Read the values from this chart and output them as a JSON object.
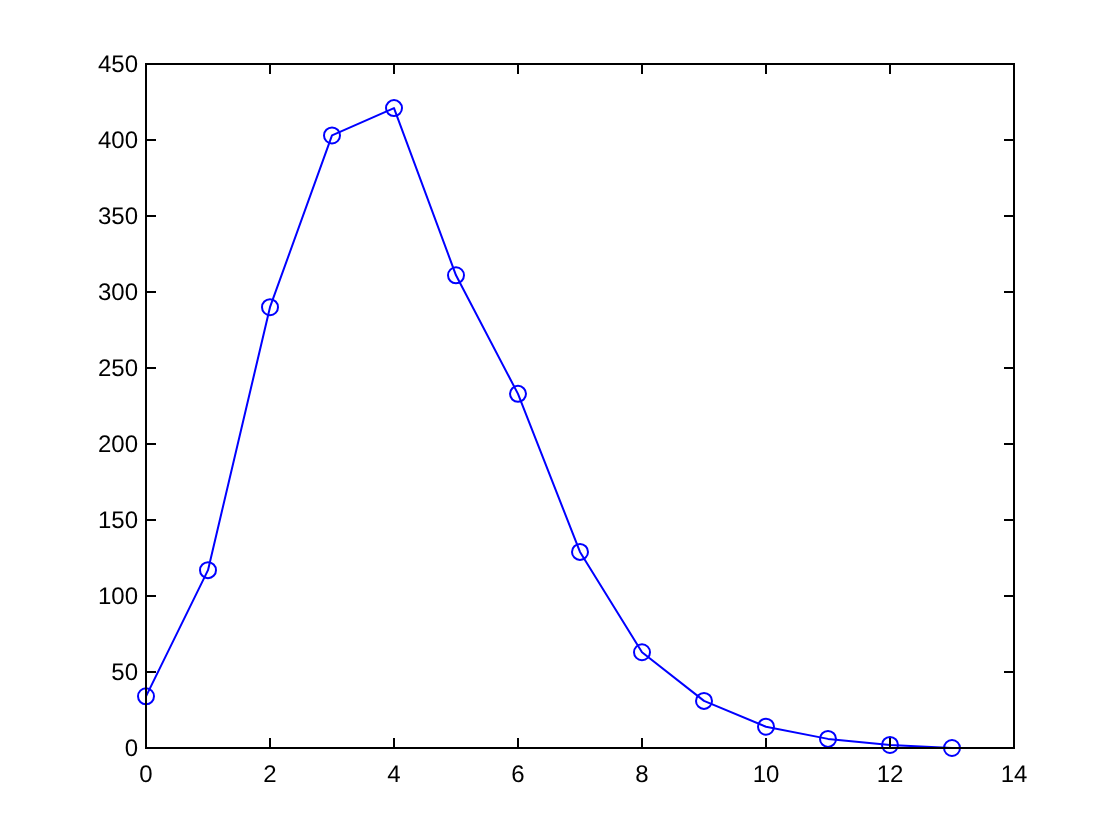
{
  "chart_data": {
    "type": "line",
    "x": [
      0,
      1,
      2,
      3,
      4,
      5,
      6,
      7,
      8,
      9,
      10,
      11,
      12,
      13
    ],
    "series": [
      {
        "color": "#0000ff",
        "values": [
          34,
          117,
          290,
          403,
          421,
          311,
          233,
          129,
          63,
          31,
          14,
          6,
          2,
          0
        ]
      }
    ],
    "xlim": [
      0,
      14
    ],
    "xticks": [
      0,
      2,
      4,
      6,
      8,
      10,
      12,
      14
    ],
    "ylim": [
      0,
      450
    ],
    "yticks": [
      0,
      50,
      100,
      150,
      200,
      250,
      300,
      350,
      400,
      450
    ],
    "grid": false,
    "marker": "circle",
    "line_style": "solid"
  }
}
